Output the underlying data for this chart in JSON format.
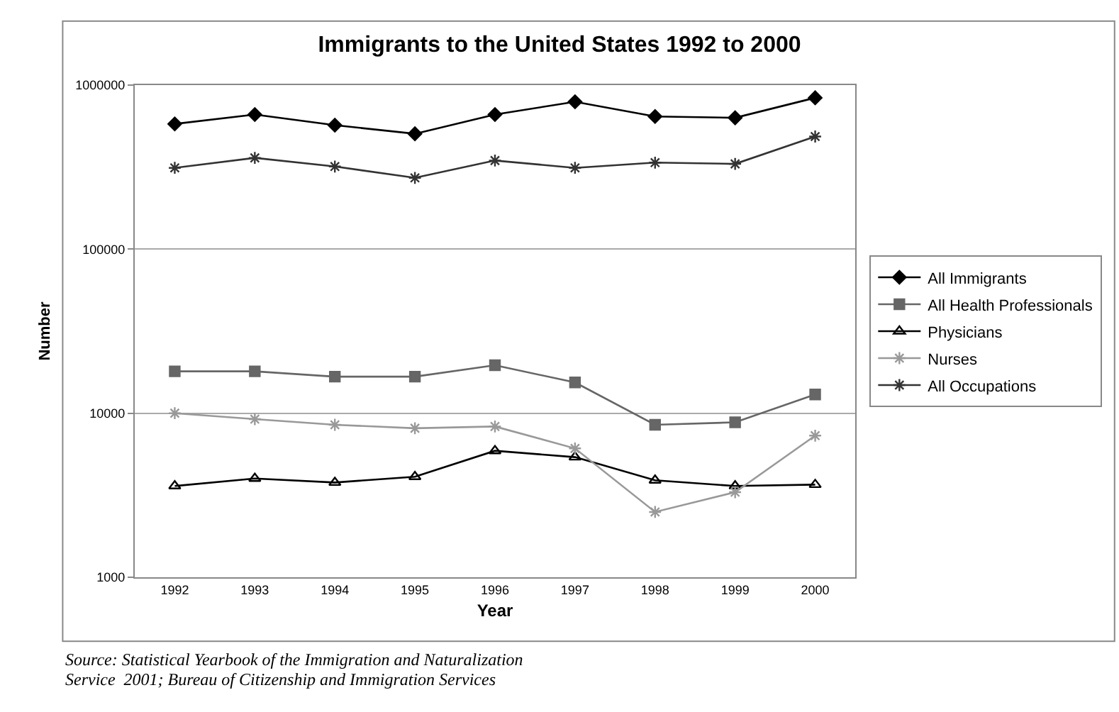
{
  "chart_data": {
    "type": "line",
    "title": "Immigrants to the United States 1992 to 2000",
    "xlabel": "Year",
    "ylabel": "Number",
    "categories": [
      "1992",
      "1993",
      "1994",
      "1995",
      "1996",
      "1997",
      "1998",
      "1999",
      "2000"
    ],
    "series": [
      {
        "name": "All Immigrants",
        "color": "#000000",
        "marker": "diamond",
        "values": [
          580000,
          662000,
          570000,
          505000,
          662000,
          791000,
          644000,
          632000,
          837000
        ]
      },
      {
        "name": "All Health Professionals",
        "color": "#666666",
        "marker": "square",
        "values": [
          18000,
          18000,
          16700,
          16700,
          19600,
          15400,
          8500,
          8800,
          13000
        ]
      },
      {
        "name": "Physicians",
        "color": "#000000",
        "marker": "triangle",
        "values": [
          3600,
          4000,
          3780,
          4100,
          5900,
          5400,
          3900,
          3600,
          3670
        ]
      },
      {
        "name": "Nurses",
        "color": "#999999",
        "marker": "cross",
        "values": [
          10000,
          9200,
          8500,
          8100,
          8300,
          6100,
          2500,
          3300,
          7300
        ]
      },
      {
        "name": "All Occupations",
        "color": "#333333",
        "marker": "cross",
        "values": [
          313000,
          360000,
          319000,
          272000,
          347000,
          313000,
          337000,
          331000,
          486000
        ]
      }
    ],
    "log": "y",
    "ylim": [
      1000,
      1000000
    ],
    "yticks": [
      1000,
      10000,
      100000,
      1000000
    ],
    "grid": "y",
    "legend": "right",
    "annotations": [
      "Source: Statistical Yearbook of the Immigration and Naturalization",
      "Service  2001; Bureau of Citizenship and Immigration Services"
    ]
  }
}
